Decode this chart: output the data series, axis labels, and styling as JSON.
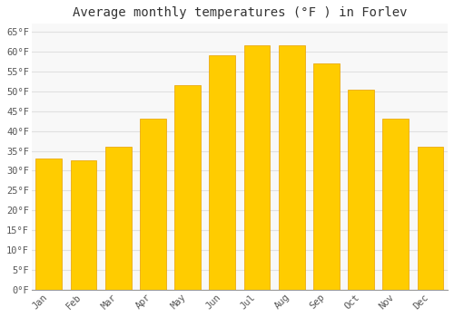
{
  "title": "Average monthly temperatures (°F ) in Forlev",
  "months": [
    "Jan",
    "Feb",
    "Mar",
    "Apr",
    "May",
    "Jun",
    "Jul",
    "Aug",
    "Sep",
    "Oct",
    "Nov",
    "Dec"
  ],
  "values": [
    33,
    32.5,
    36,
    43,
    51.5,
    59,
    61.5,
    61.5,
    57,
    50.5,
    43,
    36
  ],
  "bar_color_top": "#FFB900",
  "bar_color_bottom": "#FFCC00",
  "bar_edge_color": "#E8A000",
  "background_color": "#FFFFFF",
  "plot_bg_color": "#F8F8F8",
  "grid_color": "#E0E0E0",
  "title_fontsize": 10,
  "tick_fontsize": 7.5,
  "ylim": [
    0,
    67
  ],
  "yticks": [
    0,
    5,
    10,
    15,
    20,
    25,
    30,
    35,
    40,
    45,
    50,
    55,
    60,
    65
  ]
}
